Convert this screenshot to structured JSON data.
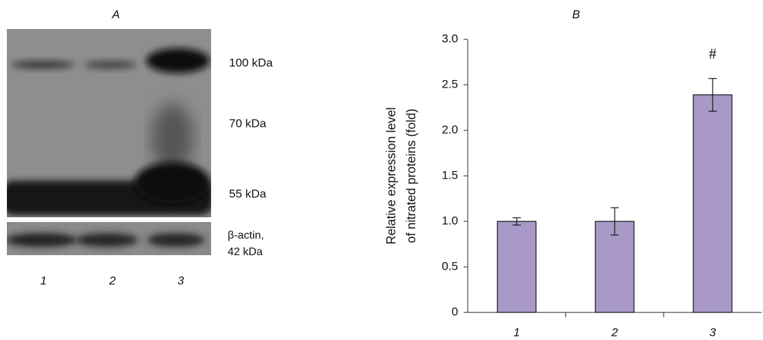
{
  "blot": {
    "title": "A",
    "markers": [
      "100 kDa",
      "70 kDa",
      "55 kDa"
    ],
    "loading_control": [
      "β-actin,",
      "42 kDa"
    ],
    "lanes": [
      "1",
      "2",
      "3"
    ]
  },
  "chart_data": {
    "type": "bar",
    "title": "B",
    "ylabel": [
      "Relative expression level",
      "of nitrated proteins (fold)"
    ],
    "categories": [
      "1",
      "2",
      "3"
    ],
    "values": [
      1.0,
      1.0,
      2.39
    ],
    "errors": [
      0.04,
      0.15,
      0.18
    ],
    "color": "#a899c9",
    "annotations": [
      {
        "text": "#",
        "x": "3"
      }
    ],
    "ylim": [
      0,
      3
    ],
    "yticks": [
      0,
      0.5,
      {
        "value": 1,
        "label": "1.0"
      },
      1.5,
      {
        "value": 2,
        "label": "2.0"
      },
      2.5,
      {
        "value": 3,
        "label": "3.0"
      }
    ]
  }
}
